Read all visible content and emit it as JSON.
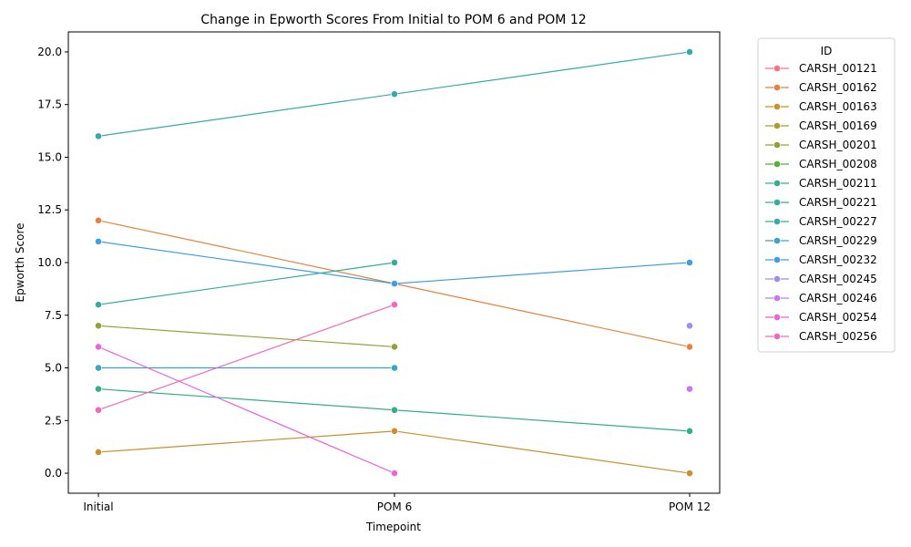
{
  "chart_data": {
    "type": "line",
    "title": "Change in Epworth Scores From Initial to POM 6 and POM 12",
    "xlabel": "Timepoint",
    "ylabel": "Epworth Score",
    "categories": [
      "Initial",
      "POM 6",
      "POM 12"
    ],
    "ylim": [
      -0.95,
      20.95
    ],
    "yticks": [
      0.0,
      2.5,
      5.0,
      7.5,
      10.0,
      12.5,
      15.0,
      17.5,
      20.0
    ],
    "ytick_labels": [
      "0.0",
      "2.5",
      "5.0",
      "7.5",
      "10.0",
      "12.5",
      "15.0",
      "17.5",
      "20.0"
    ],
    "grid": false,
    "legend": {
      "title": "ID",
      "placement": "outside-right"
    },
    "series": [
      {
        "name": "CARSH_00121",
        "color": "#f77189",
        "values": [
          null,
          null,
          null
        ]
      },
      {
        "name": "CARSH_00162",
        "color": "#e5823d",
        "values": [
          12,
          9,
          6
        ]
      },
      {
        "name": "CARSH_00163",
        "color": "#c8902f",
        "values": [
          1,
          2,
          0
        ]
      },
      {
        "name": "CARSH_00169",
        "color": "#ad9a31",
        "values": [
          null,
          null,
          null
        ]
      },
      {
        "name": "CARSH_00201",
        "color": "#8da434",
        "values": [
          7,
          6,
          null
        ]
      },
      {
        "name": "CARSH_00208",
        "color": "#50b131",
        "values": [
          null,
          null,
          null
        ]
      },
      {
        "name": "CARSH_00211",
        "color": "#34ae8a",
        "values": [
          4,
          3,
          2
        ]
      },
      {
        "name": "CARSH_00221",
        "color": "#36ab9e",
        "values": [
          8,
          10,
          null
        ]
      },
      {
        "name": "CARSH_00227",
        "color": "#38a8a8",
        "values": [
          16,
          18,
          20
        ]
      },
      {
        "name": "CARSH_00229",
        "color": "#3aa5c1",
        "values": [
          5,
          5,
          null
        ]
      },
      {
        "name": "CARSH_00232",
        "color": "#409ee2",
        "values": [
          11,
          9,
          10
        ]
      },
      {
        "name": "CARSH_00245",
        "color": "#9f8cf6",
        "values": [
          null,
          null,
          7
        ]
      },
      {
        "name": "CARSH_00246",
        "color": "#c47af4",
        "values": [
          null,
          null,
          4
        ]
      },
      {
        "name": "CARSH_00254",
        "color": "#eb63e0",
        "values": [
          6,
          0,
          null
        ]
      },
      {
        "name": "CARSH_00256",
        "color": "#f567bd",
        "values": [
          3,
          8,
          null
        ]
      }
    ]
  }
}
